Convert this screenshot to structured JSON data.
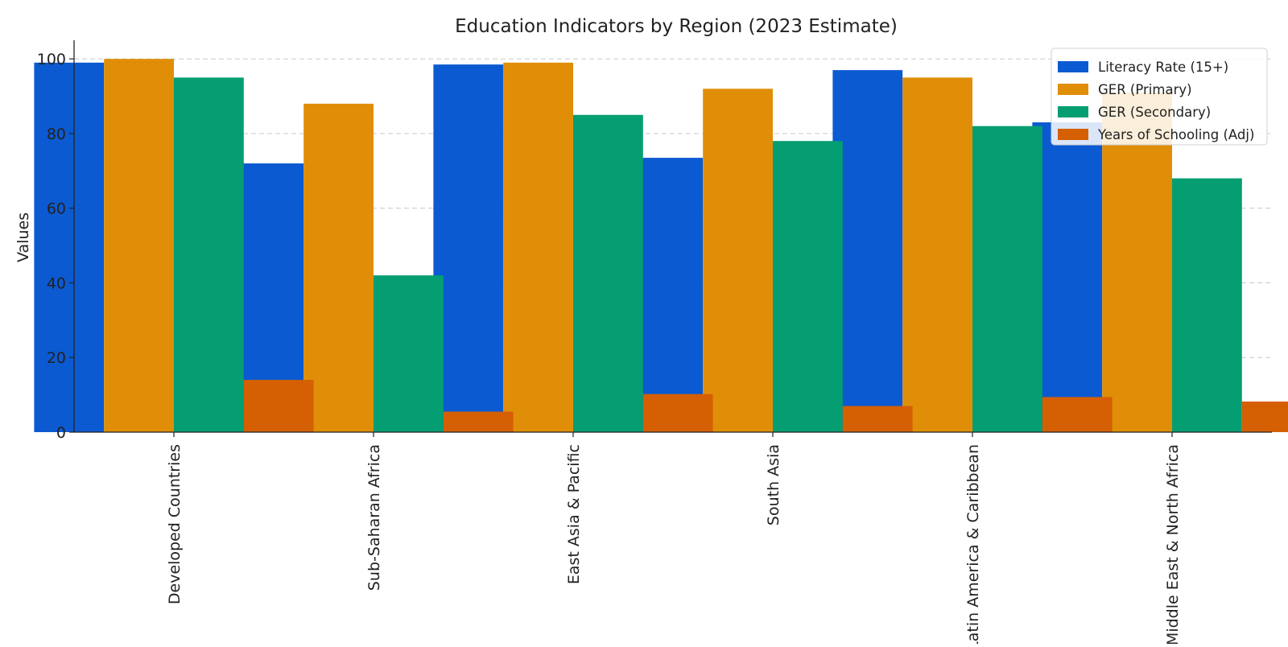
{
  "chart_data": {
    "type": "bar",
    "title": "Education Indicators by Region (2023 Estimate)",
    "xlabel": "",
    "ylabel": "Values",
    "ylim": [
      0,
      105
    ],
    "yticks": [
      0,
      20,
      40,
      60,
      80,
      100
    ],
    "grid": true,
    "legend_position": "top-right",
    "categories": [
      "Developed Countries",
      "Sub-Saharan Africa",
      "East Asia & Pacific",
      "South Asia",
      "Latin America & Caribbean",
      "Middle East & North Africa"
    ],
    "series": [
      {
        "name": "Literacy Rate (15+)",
        "color": "#0b5ad1",
        "values": [
          99,
          72,
          98.5,
          73.5,
          97,
          83
        ]
      },
      {
        "name": "GER (Primary)",
        "color": "#e08e08",
        "values": [
          100,
          88,
          99,
          92,
          95,
          91
        ]
      },
      {
        "name": "GER (Secondary)",
        "color": "#049e72",
        "values": [
          95,
          42,
          85,
          78,
          82,
          68
        ]
      },
      {
        "name": "Years of Schooling (Adj)",
        "color": "#d55f03",
        "values": [
          14,
          5.5,
          10.2,
          7,
          9.4,
          8.2
        ]
      }
    ]
  }
}
